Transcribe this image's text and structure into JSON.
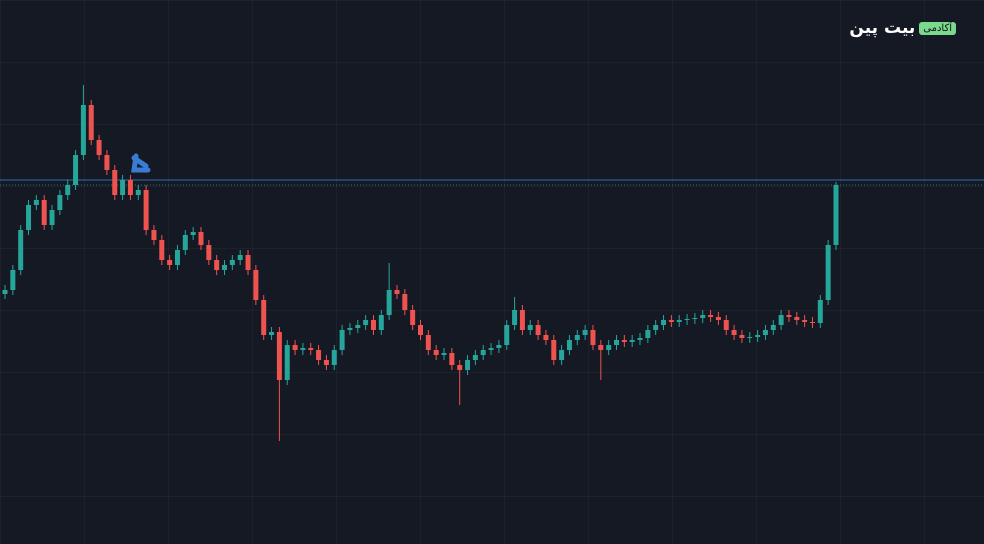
{
  "logo": {
    "name": "بیت پین",
    "badge": "آکادمی"
  },
  "chart_data": {
    "type": "candlestick",
    "up_color": "#26a69a",
    "down_color": "#ef5350",
    "level": 364,
    "level_color": "#2f6fb4",
    "open": [
      250,
      254,
      274,
      314,
      339,
      344,
      319,
      334,
      349,
      359,
      389,
      439,
      404,
      389,
      374,
      349,
      364,
      349,
      354,
      314,
      304,
      284,
      279,
      294,
      309,
      312,
      299,
      284,
      274,
      279,
      284,
      289,
      274,
      244,
      209,
      212,
      164,
      199,
      194,
      196,
      194,
      184,
      179,
      194,
      214,
      216,
      219,
      224,
      214,
      229,
      254,
      250,
      234,
      219,
      209,
      194,
      189,
      191,
      179,
      174,
      184,
      189,
      194,
      196,
      199,
      219,
      234,
      214,
      219,
      209,
      204,
      184,
      194,
      204,
      209,
      214,
      199,
      194,
      199,
      204,
      202,
      204,
      206,
      214,
      219,
      224,
      222,
      224,
      225,
      226,
      229,
      227,
      224,
      214,
      209,
      206,
      207,
      209,
      214,
      219,
      229,
      227,
      224,
      222,
      221,
      244,
      299
    ],
    "high": [
      259,
      279,
      319,
      344,
      349,
      349,
      339,
      354,
      364,
      394,
      459,
      444,
      409,
      394,
      379,
      369,
      369,
      359,
      359,
      319,
      309,
      289,
      299,
      314,
      317,
      317,
      304,
      289,
      284,
      289,
      294,
      294,
      279,
      249,
      217,
      217,
      204,
      204,
      201,
      201,
      199,
      189,
      199,
      219,
      221,
      224,
      229,
      229,
      234,
      281,
      259,
      255,
      239,
      224,
      214,
      199,
      196,
      196,
      184,
      189,
      194,
      199,
      201,
      204,
      224,
      247,
      239,
      224,
      224,
      214,
      209,
      199,
      209,
      214,
      219,
      219,
      204,
      204,
      209,
      209,
      209,
      211,
      219,
      224,
      229,
      229,
      229,
      230,
      231,
      234,
      234,
      232,
      229,
      219,
      214,
      212,
      214,
      219,
      224,
      234,
      234,
      232,
      229,
      227,
      249,
      304,
      362
    ],
    "low": [
      245,
      249,
      269,
      309,
      334,
      314,
      314,
      329,
      344,
      354,
      384,
      399,
      384,
      369,
      344,
      344,
      344,
      344,
      309,
      299,
      279,
      274,
      274,
      289,
      304,
      294,
      279,
      269,
      269,
      274,
      279,
      269,
      239,
      204,
      204,
      103,
      159,
      189,
      189,
      189,
      179,
      174,
      174,
      189,
      209,
      211,
      214,
      209,
      209,
      224,
      245,
      229,
      214,
      204,
      189,
      184,
      184,
      174,
      139,
      169,
      179,
      184,
      189,
      191,
      194,
      214,
      209,
      209,
      204,
      199,
      179,
      179,
      189,
      199,
      204,
      194,
      164,
      189,
      194,
      197,
      197,
      199,
      201,
      209,
      214,
      217,
      217,
      219,
      220,
      221,
      222,
      219,
      209,
      204,
      201,
      201,
      202,
      204,
      209,
      214,
      222,
      219,
      217,
      216,
      216,
      239,
      294
    ],
    "close": [
      254,
      274,
      314,
      339,
      344,
      319,
      334,
      349,
      359,
      389,
      439,
      404,
      389,
      374,
      349,
      364,
      349,
      354,
      314,
      304,
      284,
      279,
      294,
      309,
      312,
      299,
      284,
      274,
      279,
      284,
      289,
      274,
      244,
      209,
      212,
      164,
      199,
      194,
      196,
      194,
      184,
      179,
      194,
      214,
      216,
      219,
      224,
      214,
      229,
      254,
      250,
      234,
      219,
      209,
      194,
      189,
      191,
      179,
      174,
      184,
      189,
      194,
      196,
      199,
      219,
      234,
      214,
      219,
      209,
      204,
      184,
      194,
      204,
      209,
      214,
      199,
      194,
      199,
      204,
      202,
      204,
      206,
      214,
      219,
      224,
      222,
      224,
      225,
      226,
      229,
      227,
      224,
      214,
      209,
      206,
      207,
      209,
      214,
      219,
      229,
      227,
      224,
      222,
      221,
      244,
      299,
      359
    ]
  }
}
